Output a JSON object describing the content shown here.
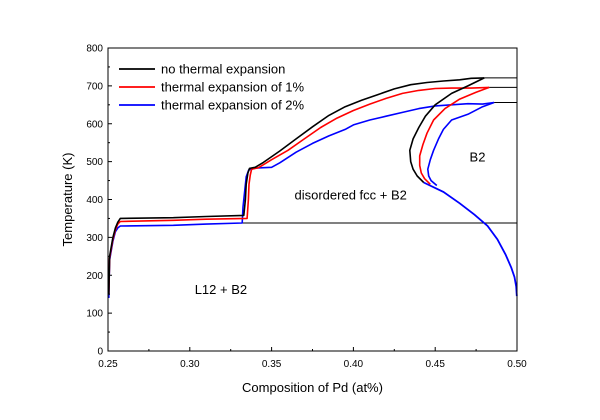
{
  "chart_data": {
    "type": "line",
    "title": "",
    "xlabel": "Composition of Pd (at%)",
    "ylabel": "Temperature (K)",
    "xlim": [
      0.25,
      0.5
    ],
    "ylim": [
      0,
      800
    ],
    "x_ticks": [
      "0.25",
      "0.30",
      "0.35",
      "0.40",
      "0.45",
      "0.50"
    ],
    "y_ticks": [
      "0",
      "100",
      "200",
      "300",
      "400",
      "500",
      "600",
      "700",
      "800"
    ],
    "grid": false,
    "legend_position": "top-left",
    "series": [
      {
        "name": "no thermal expansion",
        "color": "#000000",
        "points": [
          [
            0.2505,
            150
          ],
          [
            0.251,
            250
          ],
          [
            0.253,
            300
          ],
          [
            0.2545,
            325
          ],
          [
            0.256,
            340
          ],
          [
            0.2575,
            350
          ],
          [
            0.29,
            352
          ],
          [
            0.31,
            355
          ],
          [
            0.333,
            358
          ],
          [
            0.334,
            400
          ],
          [
            0.3345,
            440
          ],
          [
            0.3355,
            470
          ],
          [
            0.3365,
            482
          ],
          [
            0.34,
            485
          ],
          [
            0.345,
            498
          ],
          [
            0.355,
            528
          ],
          [
            0.365,
            560
          ],
          [
            0.375,
            592
          ],
          [
            0.385,
            622
          ],
          [
            0.395,
            645
          ],
          [
            0.405,
            662
          ],
          [
            0.415,
            677
          ],
          [
            0.425,
            692
          ],
          [
            0.435,
            703
          ],
          [
            0.445,
            709
          ],
          [
            0.455,
            713
          ],
          [
            0.465,
            716
          ],
          [
            0.472,
            720
          ],
          [
            0.48,
            721
          ]
        ]
      },
      {
        "name": "thermal expansion of 1%",
        "color": "#ff0000",
        "points": [
          [
            0.2505,
            150
          ],
          [
            0.251,
            245
          ],
          [
            0.253,
            295
          ],
          [
            0.2545,
            320
          ],
          [
            0.256,
            335
          ],
          [
            0.2575,
            342
          ],
          [
            0.29,
            345
          ],
          [
            0.31,
            348
          ],
          [
            0.335,
            350
          ],
          [
            0.3358,
            400
          ],
          [
            0.3362,
            440
          ],
          [
            0.337,
            465
          ],
          [
            0.3378,
            480
          ],
          [
            0.342,
            484
          ],
          [
            0.35,
            505
          ],
          [
            0.36,
            530
          ],
          [
            0.37,
            560
          ],
          [
            0.38,
            590
          ],
          [
            0.39,
            615
          ],
          [
            0.4,
            635
          ],
          [
            0.41,
            652
          ],
          [
            0.42,
            667
          ],
          [
            0.43,
            680
          ],
          [
            0.44,
            688
          ],
          [
            0.45,
            693
          ],
          [
            0.46,
            694
          ],
          [
            0.472,
            694
          ],
          [
            0.483,
            696
          ]
        ]
      },
      {
        "name": "thermal expansion of 2%",
        "color": "#0000ff",
        "points": [
          [
            0.2505,
            140
          ],
          [
            0.251,
            240
          ],
          [
            0.253,
            290
          ],
          [
            0.2545,
            315
          ],
          [
            0.256,
            325
          ],
          [
            0.2575,
            330
          ],
          [
            0.29,
            332
          ],
          [
            0.31,
            335
          ],
          [
            0.332,
            338
          ],
          [
            0.3325,
            380
          ],
          [
            0.3335,
            420
          ],
          [
            0.3345,
            460
          ],
          [
            0.336,
            478
          ],
          [
            0.34,
            483
          ],
          [
            0.35,
            485
          ],
          [
            0.355,
            497
          ],
          [
            0.365,
            525
          ],
          [
            0.375,
            548
          ],
          [
            0.385,
            568
          ],
          [
            0.395,
            585
          ],
          [
            0.4,
            597
          ],
          [
            0.41,
            610
          ],
          [
            0.42,
            620
          ],
          [
            0.43,
            630
          ],
          [
            0.44,
            640
          ],
          [
            0.45,
            647
          ],
          [
            0.46,
            650
          ],
          [
            0.47,
            653
          ],
          [
            0.479,
            652
          ],
          [
            0.486,
            656
          ]
        ]
      }
    ],
    "boundary_branches": [
      {
        "series": "no thermal expansion",
        "color": "#000000",
        "points": [
          [
            0.48,
            721
          ],
          [
            0.47,
            700
          ],
          [
            0.46,
            680
          ],
          [
            0.45,
            650
          ],
          [
            0.444,
            620
          ],
          [
            0.44,
            590
          ],
          [
            0.4365,
            560
          ],
          [
            0.4345,
            530
          ],
          [
            0.435,
            500
          ],
          [
            0.4365,
            480
          ],
          [
            0.439,
            462
          ],
          [
            0.443,
            445
          ]
        ]
      },
      {
        "series": "thermal expansion of 1%",
        "color": "#ff0000",
        "points": [
          [
            0.483,
            696
          ],
          [
            0.475,
            683
          ],
          [
            0.465,
            665
          ],
          [
            0.456,
            640
          ],
          [
            0.449,
            610
          ],
          [
            0.445,
            575
          ],
          [
            0.4425,
            545
          ],
          [
            0.4405,
            515
          ],
          [
            0.4405,
            490
          ],
          [
            0.4415,
            470
          ],
          [
            0.4435,
            455
          ],
          [
            0.447,
            440
          ]
        ]
      },
      {
        "series": "thermal expansion of 2%",
        "color": "#0000ff",
        "points": [
          [
            0.486,
            656
          ],
          [
            0.479,
            645
          ],
          [
            0.47,
            625
          ],
          [
            0.46,
            610
          ],
          [
            0.455,
            585
          ],
          [
            0.452,
            560
          ],
          [
            0.449,
            530
          ],
          [
            0.447,
            505
          ],
          [
            0.4455,
            480
          ],
          [
            0.446,
            462
          ],
          [
            0.4475,
            450
          ],
          [
            0.451,
            437
          ]
        ]
      }
    ],
    "common_boundary": [
      [
        0.443,
        445
      ],
      [
        0.455,
        420
      ],
      [
        0.465,
        390
      ],
      [
        0.474,
        360
      ],
      [
        0.482,
        330
      ],
      [
        0.488,
        295
      ],
      [
        0.493,
        255
      ],
      [
        0.4965,
        220
      ],
      [
        0.4985,
        195
      ],
      [
        0.4995,
        170
      ],
      [
        0.4999,
        145
      ]
    ],
    "reference_lines": [
      {
        "color": "#000000",
        "points": [
          [
            0.331,
            338
          ],
          [
            0.5,
            338
          ]
        ]
      },
      {
        "color": "#000000",
        "points": [
          [
            0.48,
            721
          ],
          [
            0.5,
            721
          ]
        ]
      },
      {
        "color": "#000000",
        "points": [
          [
            0.483,
            696
          ],
          [
            0.5,
            696
          ]
        ]
      },
      {
        "color": "#000000",
        "points": [
          [
            0.486,
            656
          ],
          [
            0.5,
            656
          ]
        ]
      },
      {
        "color": "#000000",
        "points": [
          [
            0.5,
            0
          ],
          [
            0.5,
            170
          ]
        ]
      }
    ],
    "annotations": [
      {
        "text": "disordered fcc + B2",
        "x": 0.364,
        "y": 400
      },
      {
        "text": "B2",
        "x": 0.471,
        "y": 500
      },
      {
        "text": "L12 + B2",
        "x": 0.303,
        "y": 150
      }
    ]
  }
}
